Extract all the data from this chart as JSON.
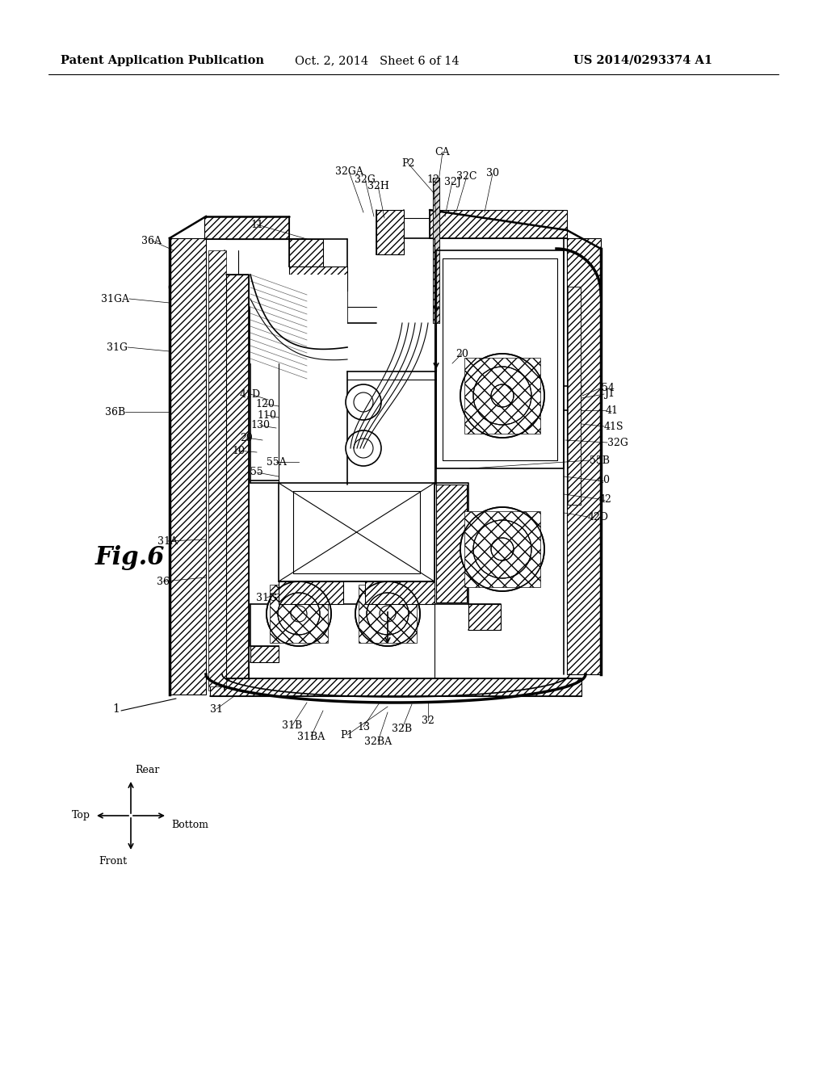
{
  "bg_color": "#ffffff",
  "line_color": "#000000",
  "header": {
    "left": "Patent Application Publication",
    "center": "Oct. 2, 2014   Sheet 6 of 14",
    "right": "US 2014/0293374 A1"
  },
  "fig_label": "Fig.6",
  "title_fontsize": 10.5,
  "label_fontsize": 9.0,
  "direction_labels": {
    "top": "Top",
    "bottom": "Bottom",
    "front": "Front",
    "rear": "Rear"
  }
}
